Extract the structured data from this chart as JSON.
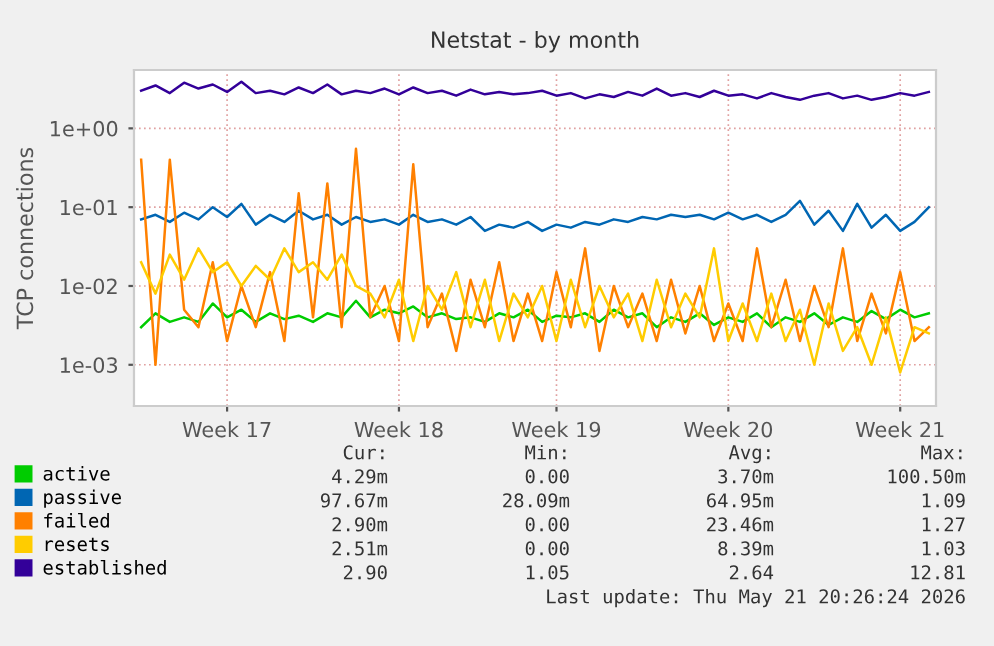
{
  "chart_data": {
    "type": "line",
    "title": "Netstat - by month",
    "ylabel": "TCP connections",
    "categories": [
      null,
      null,
      null,
      null,
      null,
      null,
      "Week 17",
      null,
      null,
      null,
      null,
      null,
      null,
      null,
      null,
      null,
      null,
      null,
      "Week 18",
      null,
      null,
      null,
      null,
      null,
      null,
      null,
      null,
      null,
      null,
      "Week 19",
      null,
      null,
      null,
      null,
      null,
      null,
      null,
      null,
      null,
      null,
      null,
      "Week 20",
      null,
      null,
      null,
      null,
      null,
      null,
      null,
      null,
      null,
      null,
      null,
      "Week 21",
      null,
      null
    ],
    "log": "y",
    "ylim": [
      0.0003,
      5.5
    ],
    "yticks": [
      {
        "value": 0.001,
        "label": "1e-03"
      },
      {
        "value": 0.01,
        "label": "1e-02"
      },
      {
        "value": 0.1,
        "label": "1e-01"
      },
      {
        "value": 1,
        "label": "1e+00"
      }
    ],
    "grid": true,
    "legend": "bottom left",
    "series": [
      {
        "name": "active",
        "color": "#00cc00",
        "values": [
          0.003,
          0.0045,
          0.0035,
          0.004,
          0.0035,
          0.006,
          0.004,
          0.005,
          0.0035,
          0.0045,
          0.0038,
          0.0042,
          0.0035,
          0.0045,
          0.004,
          0.0065,
          0.004,
          0.005,
          0.0045,
          0.0055,
          0.004,
          0.0045,
          0.0038,
          0.004,
          0.0035,
          0.0045,
          0.004,
          0.005,
          0.0035,
          0.0042,
          0.004,
          0.0045,
          0.0035,
          0.005,
          0.004,
          0.0045,
          0.003,
          0.004,
          0.0035,
          0.0045,
          0.0032,
          0.004,
          0.0035,
          0.0045,
          0.003,
          0.004,
          0.0035,
          0.0045,
          0.0032,
          0.004,
          0.0035,
          0.0048,
          0.0038,
          0.005,
          0.004,
          0.0045
        ]
      },
      {
        "name": "passive",
        "color": "#0066b3",
        "values": [
          0.07,
          0.08,
          0.065,
          0.085,
          0.07,
          0.1,
          0.075,
          0.11,
          0.06,
          0.08,
          0.065,
          0.09,
          0.07,
          0.08,
          0.06,
          0.075,
          0.065,
          0.07,
          0.06,
          0.08,
          0.065,
          0.07,
          0.06,
          0.075,
          0.05,
          0.06,
          0.055,
          0.065,
          0.05,
          0.06,
          0.055,
          0.065,
          0.06,
          0.07,
          0.065,
          0.075,
          0.07,
          0.08,
          0.075,
          0.08,
          0.07,
          0.085,
          0.07,
          0.08,
          0.065,
          0.08,
          0.12,
          0.06,
          0.09,
          0.05,
          0.11,
          0.055,
          0.08,
          0.05,
          0.065,
          0.1
        ]
      },
      {
        "name": "failed",
        "color": "#ff8000",
        "values": [
          0.4,
          0.001,
          0.4,
          0.005,
          0.003,
          0.02,
          0.002,
          0.01,
          0.003,
          0.015,
          0.002,
          0.15,
          0.004,
          0.2,
          0.003,
          0.55,
          0.004,
          0.01,
          0.002,
          0.35,
          0.003,
          0.008,
          0.0015,
          0.012,
          0.003,
          0.02,
          0.002,
          0.008,
          0.002,
          0.015,
          0.003,
          0.03,
          0.0015,
          0.01,
          0.003,
          0.008,
          0.002,
          0.012,
          0.0025,
          0.01,
          0.002,
          0.006,
          0.002,
          0.03,
          0.003,
          0.012,
          0.002,
          0.01,
          0.003,
          0.03,
          0.002,
          0.008,
          0.0025,
          0.015,
          0.002,
          0.003
        ]
      },
      {
        "name": "resets",
        "color": "#ffcc00",
        "values": [
          0.02,
          0.008,
          0.025,
          0.012,
          0.03,
          0.015,
          0.02,
          0.01,
          0.018,
          0.012,
          0.03,
          0.015,
          0.02,
          0.012,
          0.025,
          0.01,
          0.008,
          0.004,
          0.012,
          0.002,
          0.01,
          0.005,
          0.015,
          0.003,
          0.012,
          0.002,
          0.008,
          0.004,
          0.01,
          0.002,
          0.012,
          0.003,
          0.01,
          0.004,
          0.008,
          0.002,
          0.012,
          0.003,
          0.008,
          0.004,
          0.03,
          0.002,
          0.006,
          0.002,
          0.008,
          0.002,
          0.005,
          0.001,
          0.006,
          0.0015,
          0.003,
          0.001,
          0.004,
          0.0008,
          0.003,
          0.0025
        ]
      },
      {
        "name": "established",
        "color": "#330099",
        "values": [
          3.0,
          3.5,
          2.8,
          3.8,
          3.2,
          3.6,
          2.9,
          3.9,
          2.8,
          3.0,
          2.7,
          3.3,
          2.8,
          3.6,
          2.7,
          3.0,
          2.8,
          3.2,
          2.7,
          3.3,
          2.8,
          3.0,
          2.6,
          3.1,
          2.7,
          2.9,
          2.7,
          2.8,
          3.0,
          2.6,
          2.8,
          2.4,
          2.7,
          2.5,
          2.9,
          2.6,
          3.2,
          2.6,
          2.8,
          2.5,
          3.0,
          2.6,
          2.7,
          2.4,
          2.8,
          2.5,
          2.3,
          2.6,
          2.8,
          2.4,
          2.6,
          2.3,
          2.5,
          2.8,
          2.6,
          2.9
        ]
      }
    ],
    "annotations": [
      "Cur:",
      "Min:",
      "Avg:",
      "Max:",
      "4.29m",
      "0.00",
      "3.70m",
      "100.50m",
      "97.67m",
      "28.09m",
      "64.95m",
      "1.09",
      "2.90m",
      "0.00",
      "23.46m",
      "1.27",
      "2.51m",
      "0.00",
      "8.39m",
      "1.03",
      "2.90",
      "1.05",
      "2.64",
      "12.81",
      "Last update: Thu May 21 20:26:24 2026"
    ]
  }
}
